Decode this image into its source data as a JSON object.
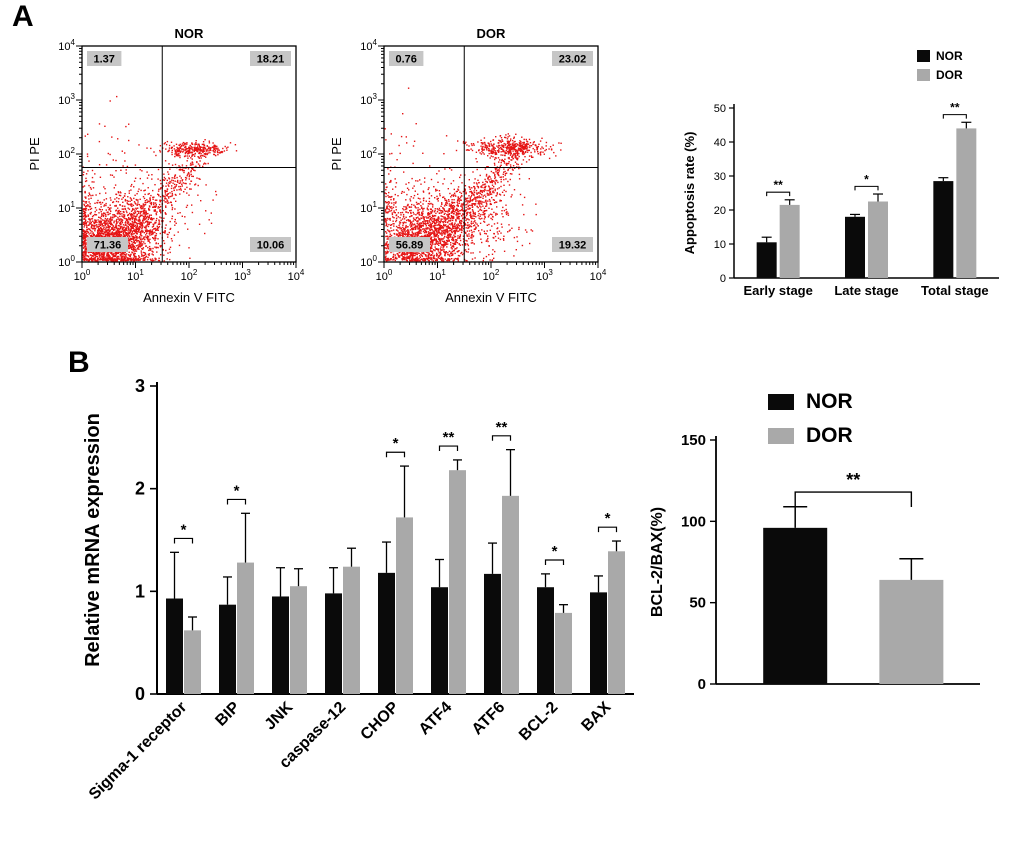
{
  "panels": {
    "a": "A",
    "b": "B"
  },
  "legend": {
    "nor": "NOR",
    "dor": "DOR"
  },
  "colors": {
    "nor": "#0a0a0a",
    "dor": "#a9a9a9",
    "scatter": "#e51414",
    "label_bg": "#c6c6c6",
    "axis": "#000000"
  },
  "chart_data": [
    {
      "id": "flow-nor",
      "type": "scatter",
      "title": "NOR",
      "xlabel": "Annexin V FITC",
      "ylabel": "PI PE",
      "x_log_range": [
        0,
        4
      ],
      "y_log_range": [
        0,
        4
      ],
      "gate_x_log": 1.5,
      "gate_y_log": 1.75,
      "quadrants": {
        "upper_left": "1.37",
        "upper_right": "18.21",
        "lower_left": "71.36",
        "lower_right": "10.06"
      },
      "seed": 1337,
      "clusters": [
        {
          "type": "gauss",
          "cx": 0.72,
          "cy": 0.5,
          "sx": 0.38,
          "sy": 0.33,
          "n": 1500
        },
        {
          "type": "gauss",
          "cx": 0.4,
          "cy": 0.3,
          "sx": 0.22,
          "sy": 0.18,
          "n": 500
        },
        {
          "type": "line",
          "x0": 0.9,
          "y0": 0.55,
          "x1": 2.25,
          "y1": 1.95,
          "jitter": 0.13,
          "n": 320
        },
        {
          "type": "gauss",
          "cx": 2.12,
          "cy": 2.08,
          "sx": 0.32,
          "sy": 0.07,
          "n": 300
        },
        {
          "type": "gauss",
          "cx": 1.4,
          "cy": 1.05,
          "sx": 0.5,
          "sy": 0.4,
          "n": 180
        },
        {
          "type": "gauss",
          "cx": 0.12,
          "cy": 0.9,
          "sx": 0.08,
          "sy": 0.5,
          "n": 100
        },
        {
          "type": "gauss",
          "cx": 0.5,
          "cy": 2.2,
          "sx": 0.3,
          "sy": 0.4,
          "n": 25
        }
      ]
    },
    {
      "id": "flow-dor",
      "type": "scatter",
      "title": "DOR",
      "xlabel": "Annexin V FITC",
      "ylabel": "PI PE",
      "x_log_range": [
        0,
        4
      ],
      "y_log_range": [
        0,
        4
      ],
      "gate_x_log": 1.5,
      "gate_y_log": 1.75,
      "quadrants": {
        "upper_left": "0.76",
        "upper_right": "23.02",
        "lower_left": "56.89",
        "lower_right": "19.32"
      },
      "seed": 2024,
      "clusters": [
        {
          "type": "gauss",
          "cx": 0.85,
          "cy": 0.55,
          "sx": 0.42,
          "sy": 0.35,
          "n": 1250
        },
        {
          "type": "gauss",
          "cx": 0.5,
          "cy": 0.3,
          "sx": 0.25,
          "sy": 0.18,
          "n": 400
        },
        {
          "type": "line",
          "x0": 1.0,
          "y0": 0.5,
          "x1": 2.55,
          "y1": 2.05,
          "jitter": 0.15,
          "n": 520
        },
        {
          "type": "gauss",
          "cx": 2.33,
          "cy": 2.12,
          "sx": 0.37,
          "sy": 0.08,
          "n": 400
        },
        {
          "type": "gauss",
          "cx": 1.75,
          "cy": 0.85,
          "sx": 0.45,
          "sy": 0.38,
          "n": 300
        },
        {
          "type": "gauss",
          "cx": 0.12,
          "cy": 0.95,
          "sx": 0.08,
          "sy": 0.55,
          "n": 90
        },
        {
          "type": "gauss",
          "cx": 0.5,
          "cy": 2.3,
          "sx": 0.25,
          "sy": 0.35,
          "n": 15
        }
      ]
    },
    {
      "id": "apoptosis-bar",
      "type": "bar",
      "ylabel": "Appoptosis rate (%)",
      "ylim": [
        0,
        50
      ],
      "yticks": [
        0,
        10,
        20,
        30,
        40,
        50
      ],
      "categories": [
        "Early stage",
        "Late stage",
        "Total stage"
      ],
      "series": [
        {
          "name": "NOR",
          "values": [
            10.5,
            18.0,
            28.5
          ],
          "errors": [
            1.5,
            0.7,
            1.0
          ]
        },
        {
          "name": "DOR",
          "values": [
            21.5,
            22.5,
            44.0
          ],
          "errors": [
            1.5,
            2.2,
            1.8
          ]
        }
      ],
      "significance": [
        "**",
        "*",
        "**"
      ],
      "legend": [
        "NOR",
        "DOR"
      ],
      "legend_position": "top-right"
    },
    {
      "id": "mrna-bar",
      "type": "bar",
      "ylabel": "Relative mRNA expression",
      "ylim": [
        0,
        3
      ],
      "yticks": [
        0,
        1,
        2,
        3
      ],
      "categories": [
        "Sigma-1 receptor",
        "BIP",
        "JNK",
        "caspase-12",
        "CHOP",
        "ATF4",
        "ATF6",
        "BCL-2",
        "BAX"
      ],
      "series": [
        {
          "name": "NOR",
          "values": [
            0.93,
            0.87,
            0.95,
            0.98,
            1.18,
            1.04,
            1.17,
            1.04,
            0.99
          ],
          "errors": [
            0.45,
            0.27,
            0.28,
            0.25,
            0.3,
            0.27,
            0.3,
            0.13,
            0.16
          ]
        },
        {
          "name": "DOR",
          "values": [
            0.62,
            1.28,
            1.05,
            1.24,
            1.72,
            2.18,
            1.93,
            0.79,
            1.39
          ],
          "errors": [
            0.13,
            0.48,
            0.17,
            0.18,
            0.5,
            0.1,
            0.45,
            0.08,
            0.1
          ]
        }
      ],
      "significance": [
        "*",
        "*",
        null,
        null,
        "*",
        "**",
        "**",
        "*",
        "*"
      ]
    },
    {
      "id": "bcl2-bax-bar",
      "type": "bar",
      "ylabel": "BCL-2/BAX(%)",
      "ylim": [
        0,
        150
      ],
      "yticks": [
        0,
        50,
        100,
        150
      ],
      "bars": [
        {
          "name": "NOR",
          "value": 96,
          "error": 13
        },
        {
          "name": "DOR",
          "value": 64,
          "error": 13
        }
      ],
      "significance_bracket": "**"
    }
  ]
}
